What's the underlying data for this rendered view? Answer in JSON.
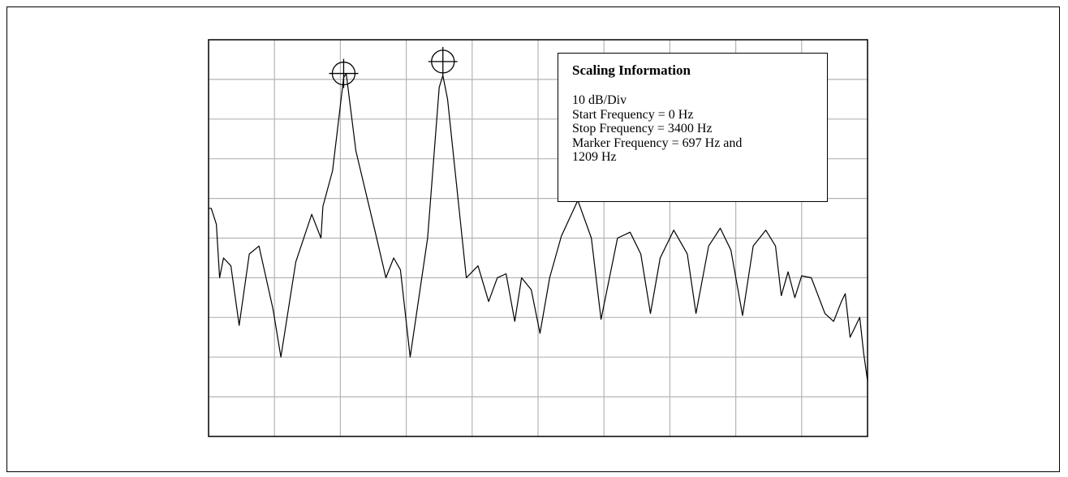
{
  "chart_data": {
    "type": "line",
    "title": "",
    "xlabel": "",
    "ylabel": "",
    "x_range_hz": [
      0,
      3400
    ],
    "y_divisions": 10,
    "dB_per_division": 10,
    "grid": true,
    "series": [
      {
        "description": "spectrum magnitude trace (relative divisions from top of plot)",
        "points": [
          [
            0,
            4.25
          ],
          [
            14,
            4.25
          ],
          [
            40,
            4.65
          ],
          [
            57,
            6.0
          ],
          [
            77,
            5.5
          ],
          [
            115,
            5.7
          ],
          [
            158,
            7.2
          ],
          [
            210,
            5.4
          ],
          [
            260,
            5.2
          ],
          [
            333,
            6.8
          ],
          [
            373,
            8.0
          ],
          [
            450,
            5.6
          ],
          [
            532,
            4.4
          ],
          [
            580,
            5.0
          ],
          [
            590,
            4.2
          ],
          [
            640,
            3.3
          ],
          [
            697,
            0.95
          ],
          [
            710,
            0.85
          ],
          [
            760,
            2.8
          ],
          [
            860,
            4.85
          ],
          [
            915,
            6.0
          ],
          [
            955,
            5.5
          ],
          [
            990,
            5.8
          ],
          [
            1040,
            8.0
          ],
          [
            1130,
            5.0
          ],
          [
            1190,
            1.2
          ],
          [
            1209,
            0.9
          ],
          [
            1233,
            1.5
          ],
          [
            1330,
            6.0
          ],
          [
            1390,
            5.7
          ],
          [
            1445,
            6.6
          ],
          [
            1490,
            6.0
          ],
          [
            1535,
            5.9
          ],
          [
            1580,
            7.1
          ],
          [
            1615,
            6.0
          ],
          [
            1665,
            6.3
          ],
          [
            1710,
            7.4
          ],
          [
            1760,
            6.0
          ],
          [
            1820,
            4.95
          ],
          [
            1905,
            4.05
          ],
          [
            1975,
            5.0
          ],
          [
            2025,
            7.05
          ],
          [
            2110,
            5.0
          ],
          [
            2175,
            4.85
          ],
          [
            2230,
            5.4
          ],
          [
            2280,
            6.9
          ],
          [
            2330,
            5.5
          ],
          [
            2400,
            4.8
          ],
          [
            2470,
            5.4
          ],
          [
            2515,
            6.9
          ],
          [
            2580,
            5.2
          ],
          [
            2640,
            4.75
          ],
          [
            2695,
            5.3
          ],
          [
            2755,
            6.95
          ],
          [
            2810,
            5.2
          ],
          [
            2875,
            4.8
          ],
          [
            2925,
            5.2
          ],
          [
            2955,
            6.45
          ],
          [
            2990,
            5.85
          ],
          [
            3025,
            6.5
          ],
          [
            3060,
            5.95
          ],
          [
            3110,
            6.0
          ],
          [
            3180,
            6.9
          ],
          [
            3225,
            7.1
          ],
          [
            3265,
            6.6
          ],
          [
            3285,
            6.4
          ],
          [
            3310,
            7.5
          ],
          [
            3360,
            7.0
          ],
          [
            3380,
            7.9
          ],
          [
            3400,
            8.6
          ]
        ]
      }
    ],
    "markers": [
      {
        "frequency_hz": 697,
        "level_div": 0.85
      },
      {
        "frequency_hz": 1209,
        "level_div": 0.55
      }
    ]
  },
  "legend": {
    "title": "Scaling Information",
    "lines": [
      "10 dB/Div",
      "Start Frequency = 0 Hz",
      "Stop Frequency = 3400 Hz",
      "Marker Frequency = 697 Hz and",
      "1209 Hz"
    ]
  },
  "colors": {
    "trace": "#000000",
    "grid": "#b4b4b4",
    "axes": "#000000",
    "background": "#ffffff"
  }
}
